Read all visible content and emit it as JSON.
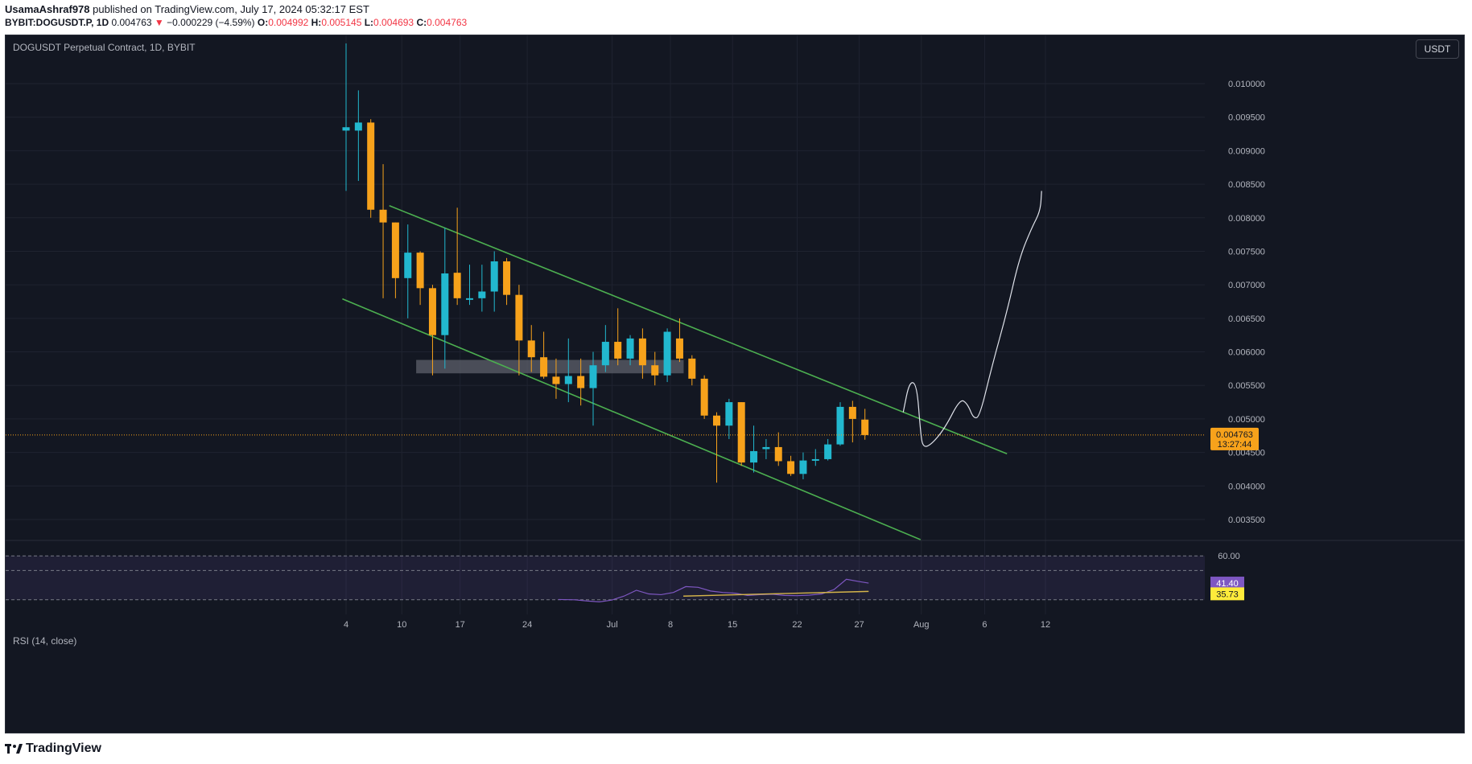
{
  "header": {
    "publisher": "UsamaAshraf978",
    "published_text": "published on TradingView.com, July 17, 2024 05:32:17 EST",
    "symbol": "BYBIT:DOGUSDT.P, 1D",
    "last": "0.004763",
    "change": "−0.000229 (−4.59%)",
    "o_label": "O:",
    "o_value": "0.004992",
    "h_label": "H:",
    "h_value": "0.005145",
    "l_label": "L:",
    "l_value": "0.004693",
    "c_label": "C:",
    "c_value": "0.004763"
  },
  "legend": {
    "title": "DOGUSDT Perpetual Contract, 1D, BYBIT"
  },
  "currency_button": "USDT",
  "rsi": {
    "title": "RSI (14, close)",
    "upper_band": "60.00",
    "rsi_value": "41.40",
    "ma_value": "35.73"
  },
  "price_label": {
    "value": "0.004763",
    "countdown": "13:27:44"
  },
  "footer": {
    "brand": "TradingView"
  },
  "colors": {
    "bg": "#131722",
    "up": "#22b8cf",
    "down": "#f7a21b",
    "channel": "#4caf50",
    "rsi": "#7e57c2",
    "rsi_ma": "#d4b44a",
    "path": "#e0e3eb"
  },
  "chart_data": {
    "type": "candlestick",
    "ylim": [
      0.0032,
      0.0106
    ],
    "y_ticks": [
      "0.010000",
      "0.009500",
      "0.009000",
      "0.008500",
      "0.008000",
      "0.007500",
      "0.007000",
      "0.006500",
      "0.006000",
      "0.005500",
      "0.005000",
      "0.004500",
      "0.004000",
      "0.003500"
    ],
    "x_ticks": [
      "4",
      "10",
      "17",
      "24",
      "Jul",
      "8",
      "15",
      "22",
      "27",
      "Aug",
      "6",
      "12"
    ],
    "candles": [
      {
        "o": 0.0093,
        "h": 0.0106,
        "l": 0.0084,
        "c": 0.00935
      },
      {
        "o": 0.0093,
        "h": 0.0099,
        "l": 0.00855,
        "c": 0.00942
      },
      {
        "o": 0.00942,
        "h": 0.00947,
        "l": 0.008,
        "c": 0.00812
      },
      {
        "o": 0.00812,
        "h": 0.0088,
        "l": 0.0068,
        "c": 0.00793
      },
      {
        "o": 0.00793,
        "h": 0.00793,
        "l": 0.0068,
        "c": 0.0071
      },
      {
        "o": 0.0071,
        "h": 0.0079,
        "l": 0.0065,
        "c": 0.00748
      },
      {
        "o": 0.00748,
        "h": 0.0075,
        "l": 0.0067,
        "c": 0.00695
      },
      {
        "o": 0.00695,
        "h": 0.007,
        "l": 0.00565,
        "c": 0.00625
      },
      {
        "o": 0.00625,
        "h": 0.00785,
        "l": 0.00575,
        "c": 0.00717
      },
      {
        "o": 0.00718,
        "h": 0.00815,
        "l": 0.0067,
        "c": 0.0068
      },
      {
        "o": 0.0068,
        "h": 0.0073,
        "l": 0.0067,
        "c": 0.0068
      },
      {
        "o": 0.0068,
        "h": 0.0073,
        "l": 0.0066,
        "c": 0.0069
      },
      {
        "o": 0.0069,
        "h": 0.0075,
        "l": 0.0066,
        "c": 0.00735
      },
      {
        "o": 0.00735,
        "h": 0.0074,
        "l": 0.0067,
        "c": 0.00685
      },
      {
        "o": 0.00685,
        "h": 0.007,
        "l": 0.00565,
        "c": 0.00617
      },
      {
        "o": 0.00617,
        "h": 0.0064,
        "l": 0.0057,
        "c": 0.00592
      },
      {
        "o": 0.00592,
        "h": 0.0063,
        "l": 0.0056,
        "c": 0.00563
      },
      {
        "o": 0.00563,
        "h": 0.0059,
        "l": 0.0053,
        "c": 0.00552
      },
      {
        "o": 0.00552,
        "h": 0.0062,
        "l": 0.00525,
        "c": 0.00564
      },
      {
        "o": 0.00564,
        "h": 0.0059,
        "l": 0.0052,
        "c": 0.00546
      },
      {
        "o": 0.00546,
        "h": 0.006,
        "l": 0.0049,
        "c": 0.0058
      },
      {
        "o": 0.0058,
        "h": 0.0064,
        "l": 0.0057,
        "c": 0.00615
      },
      {
        "o": 0.00615,
        "h": 0.00665,
        "l": 0.0058,
        "c": 0.0059
      },
      {
        "o": 0.0059,
        "h": 0.00625,
        "l": 0.0058,
        "c": 0.0062
      },
      {
        "o": 0.0062,
        "h": 0.00635,
        "l": 0.0056,
        "c": 0.0058
      },
      {
        "o": 0.0058,
        "h": 0.006,
        "l": 0.0055,
        "c": 0.00565
      },
      {
        "o": 0.00565,
        "h": 0.00635,
        "l": 0.00555,
        "c": 0.0063
      },
      {
        "o": 0.0062,
        "h": 0.0065,
        "l": 0.00585,
        "c": 0.0059
      },
      {
        "o": 0.0059,
        "h": 0.00595,
        "l": 0.0055,
        "c": 0.0056
      },
      {
        "o": 0.0056,
        "h": 0.00565,
        "l": 0.005,
        "c": 0.00505
      },
      {
        "o": 0.00505,
        "h": 0.0051,
        "l": 0.00405,
        "c": 0.0049
      },
      {
        "o": 0.0049,
        "h": 0.0053,
        "l": 0.0047,
        "c": 0.00525
      },
      {
        "o": 0.00525,
        "h": 0.00525,
        "l": 0.0043,
        "c": 0.00435
      },
      {
        "o": 0.00435,
        "h": 0.0049,
        "l": 0.0042,
        "c": 0.00452
      },
      {
        "o": 0.00455,
        "h": 0.0047,
        "l": 0.0044,
        "c": 0.00458
      },
      {
        "o": 0.00458,
        "h": 0.0048,
        "l": 0.0043,
        "c": 0.00437
      },
      {
        "o": 0.00437,
        "h": 0.00445,
        "l": 0.00415,
        "c": 0.00418
      },
      {
        "o": 0.00418,
        "h": 0.0045,
        "l": 0.0041,
        "c": 0.00438
      },
      {
        "o": 0.00438,
        "h": 0.00455,
        "l": 0.0043,
        "c": 0.0044
      },
      {
        "o": 0.0044,
        "h": 0.0047,
        "l": 0.00438,
        "c": 0.00462
      },
      {
        "o": 0.00462,
        "h": 0.00525,
        "l": 0.0046,
        "c": 0.00518
      },
      {
        "o": 0.00518,
        "h": 0.00527,
        "l": 0.00465,
        "c": 0.005
      },
      {
        "o": 0.00499,
        "h": 0.00515,
        "l": 0.00469,
        "c": 0.00476
      }
    ],
    "zone": {
      "y_top": 0.00588,
      "y_bottom": 0.00568,
      "x_from": 6,
      "x_to": 27
    },
    "channel_upper": [
      {
        "i": 3.5,
        "y": 0.00818
      },
      {
        "i": 53.5,
        "y": 0.00448
      }
    ],
    "channel_lower": [
      {
        "i": -0.3,
        "y": 0.00679
      },
      {
        "i": 46.5,
        "y": 0.0032
      }
    ],
    "projection": [
      {
        "i": 45.1,
        "y": 0.0051
      },
      {
        "i": 45.6,
        "y": 0.00556
      },
      {
        "i": 46.2,
        "y": 0.00552
      },
      {
        "i": 46.5,
        "y": 0.0048
      },
      {
        "i": 46.7,
        "y": 0.00457
      },
      {
        "i": 47.4,
        "y": 0.00462
      },
      {
        "i": 48.5,
        "y": 0.00487
      },
      {
        "i": 49.7,
        "y": 0.0053
      },
      {
        "i": 50.3,
        "y": 0.00523
      },
      {
        "i": 50.8,
        "y": 0.005
      },
      {
        "i": 51.3,
        "y": 0.00504
      },
      {
        "i": 52.3,
        "y": 0.0058
      },
      {
        "i": 53.5,
        "y": 0.0066
      },
      {
        "i": 54.5,
        "y": 0.0074
      },
      {
        "i": 55.5,
        "y": 0.00785
      },
      {
        "i": 56.2,
        "y": 0.0081
      },
      {
        "i": 56.3,
        "y": 0.0084
      }
    ],
    "rsi_range": [
      20,
      70
    ],
    "rsi_levels": [
      30,
      50,
      60
    ],
    "rsi_line": [
      {
        "i": 17.2,
        "v": 30.2
      },
      {
        "i": 18.5,
        "v": 30.0
      },
      {
        "i": 19.5,
        "v": 29.2
      },
      {
        "i": 20.5,
        "v": 28.6
      },
      {
        "i": 21.5,
        "v": 29.8
      },
      {
        "i": 22.5,
        "v": 32.5
      },
      {
        "i": 23.5,
        "v": 36.5
      },
      {
        "i": 24.5,
        "v": 34.0
      },
      {
        "i": 25.5,
        "v": 33.5
      },
      {
        "i": 26.5,
        "v": 35.0
      },
      {
        "i": 27.5,
        "v": 39.0
      },
      {
        "i": 28.5,
        "v": 38.5
      },
      {
        "i": 29.5,
        "v": 36.0
      },
      {
        "i": 30.5,
        "v": 35.0
      },
      {
        "i": 31.5,
        "v": 34.5
      },
      {
        "i": 32.5,
        "v": 33.0
      },
      {
        "i": 33.5,
        "v": 33.5
      },
      {
        "i": 34.5,
        "v": 33.8
      },
      {
        "i": 35.5,
        "v": 33.0
      },
      {
        "i": 36.5,
        "v": 32.8
      },
      {
        "i": 37.5,
        "v": 33.2
      },
      {
        "i": 38.5,
        "v": 34.0
      },
      {
        "i": 39.5,
        "v": 37.0
      },
      {
        "i": 40.5,
        "v": 44.0
      },
      {
        "i": 41.5,
        "v": 42.5
      },
      {
        "i": 42.3,
        "v": 41.4
      }
    ],
    "rsi_ma": [
      {
        "i": 27.3,
        "v": 32.5
      },
      {
        "i": 42.3,
        "v": 35.73
      }
    ]
  }
}
